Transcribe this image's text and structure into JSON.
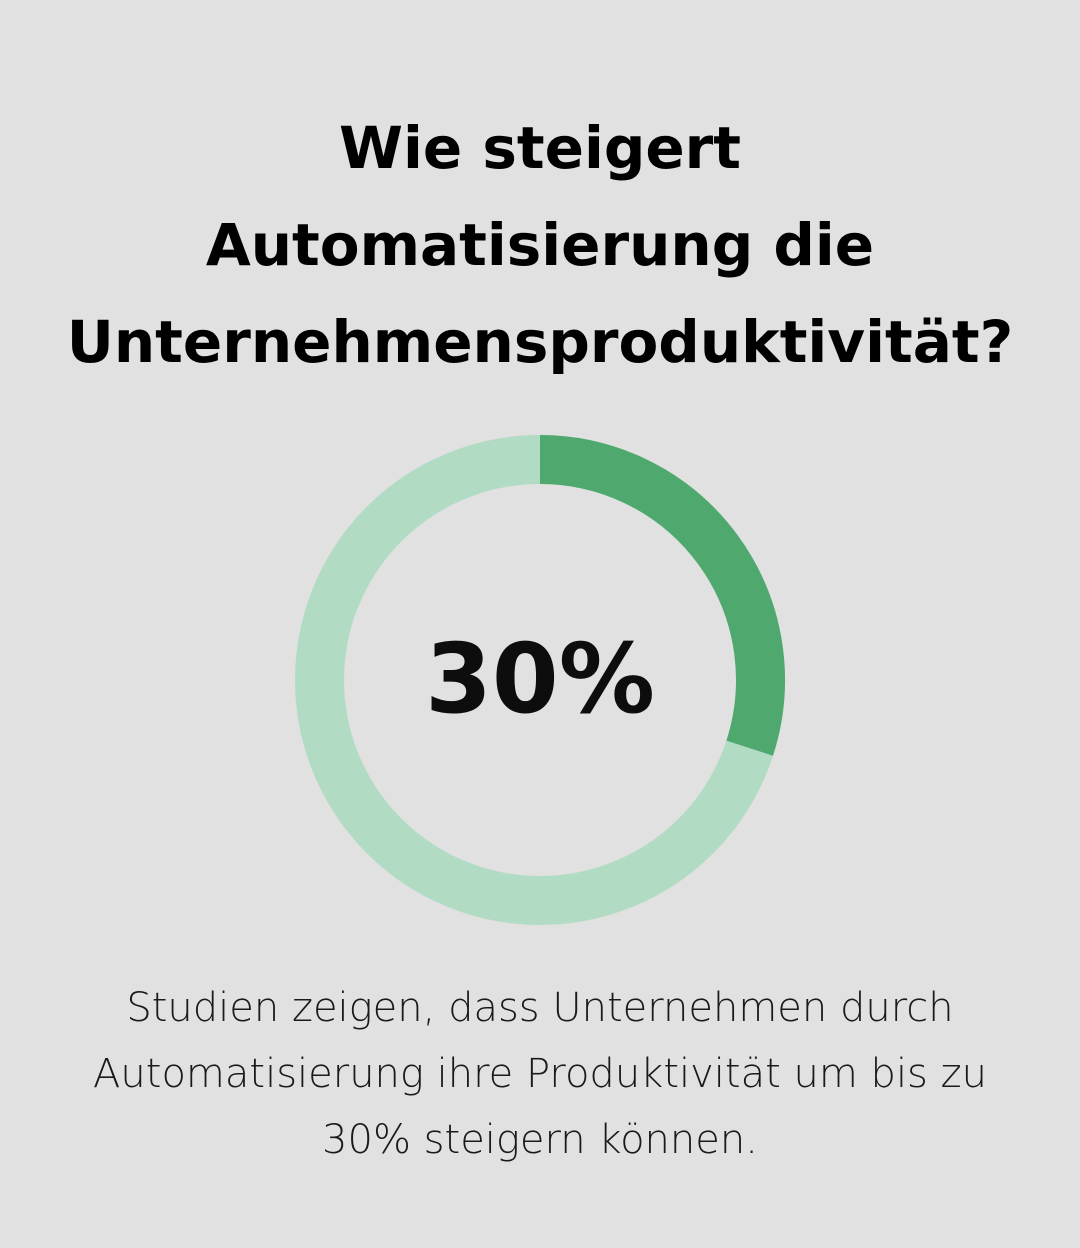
{
  "title": {
    "line1": "Wie steigert",
    "line2": "Automatisierung die",
    "line3": "Unternehmensproduktivität?"
  },
  "chart_data": {
    "type": "pie",
    "variant": "donut",
    "value_percent": 30,
    "remainder_percent": 70,
    "center_label": "30%",
    "colors": {
      "filled": "#4fa96f",
      "remainder": "#b1dcc3",
      "background": "#e0e1e0"
    }
  },
  "description": {
    "line1": "Studien zeigen, dass Unternehmen durch",
    "line2": "Automatisierung ihre Produktivität um bis zu",
    "line3": "30% steigern können."
  }
}
